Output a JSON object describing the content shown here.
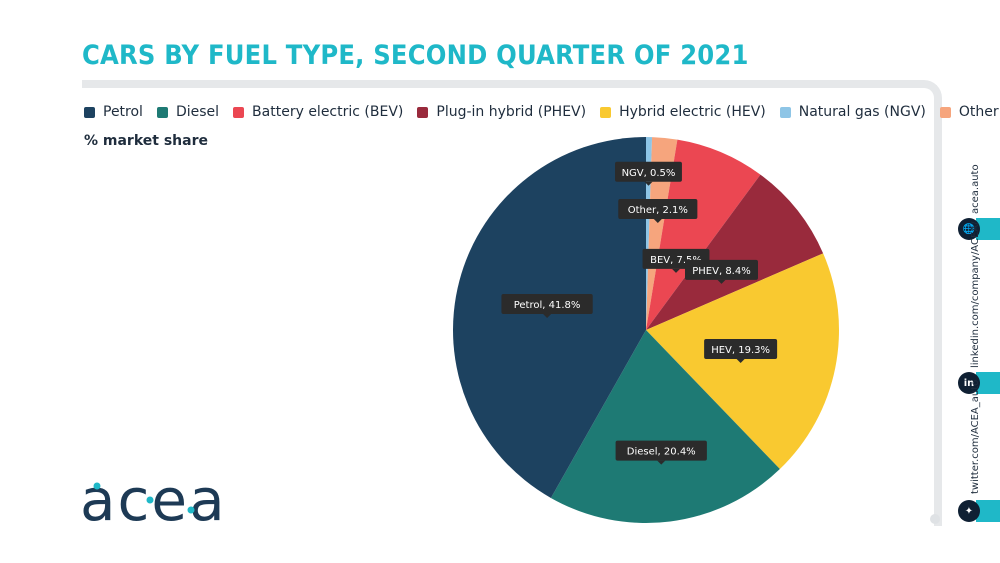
{
  "title": "CARS BY FUEL TYPE, SECOND QUARTER OF 2021",
  "subtitle": "% market share",
  "legend": [
    {
      "label": "Petrol",
      "color": "#1d4260"
    },
    {
      "label": "Diesel",
      "color": "#1e7a74"
    },
    {
      "label": "Battery electric (BEV)",
      "color": "#eb4752"
    },
    {
      "label": "Plug-in hybrid (PHEV)",
      "color": "#992a3c"
    },
    {
      "label": "Hybrid electric (HEV)",
      "color": "#f9c930"
    },
    {
      "label": "Natural gas (NGV)",
      "color": "#8ec5e6"
    },
    {
      "label": "Other",
      "color": "#f6a57d"
    }
  ],
  "chart_data": {
    "type": "pie",
    "title": "CARS BY FUEL TYPE, SECOND QUARTER OF 2021",
    "subtitle": "% market share",
    "start_angle_deg": 0,
    "direction": "clockwise",
    "slices": [
      {
        "key": "ngv",
        "label": "NGV, 0.5%",
        "value": 0.5,
        "color": "#8ec5e6"
      },
      {
        "key": "other",
        "label": "Other, 2.1%",
        "value": 2.1,
        "color": "#f6a57d"
      },
      {
        "key": "bev",
        "label": "BEV, 7.5%",
        "value": 7.5,
        "color": "#eb4752"
      },
      {
        "key": "phev",
        "label": "PHEV, 8.4%",
        "value": 8.4,
        "color": "#992a3c"
      },
      {
        "key": "hev",
        "label": "HEV, 19.3%",
        "value": 19.3,
        "color": "#f9c930"
      },
      {
        "key": "diesel",
        "label": "Diesel, 20.4%",
        "value": 20.4,
        "color": "#1e7a74"
      },
      {
        "key": "petrol",
        "label": "Petrol, 41.8%",
        "value": 41.8,
        "color": "#1d4260"
      }
    ],
    "legend_position": "top"
  },
  "logo": {
    "text": "acea"
  },
  "social": [
    {
      "text": "acea.auto",
      "icon": "globe-icon"
    },
    {
      "text": "linkedin.com/company/ACEA/",
      "icon": "in"
    },
    {
      "text": "twitter.com/ACEA_auto",
      "icon": "twitter-icon"
    }
  ]
}
